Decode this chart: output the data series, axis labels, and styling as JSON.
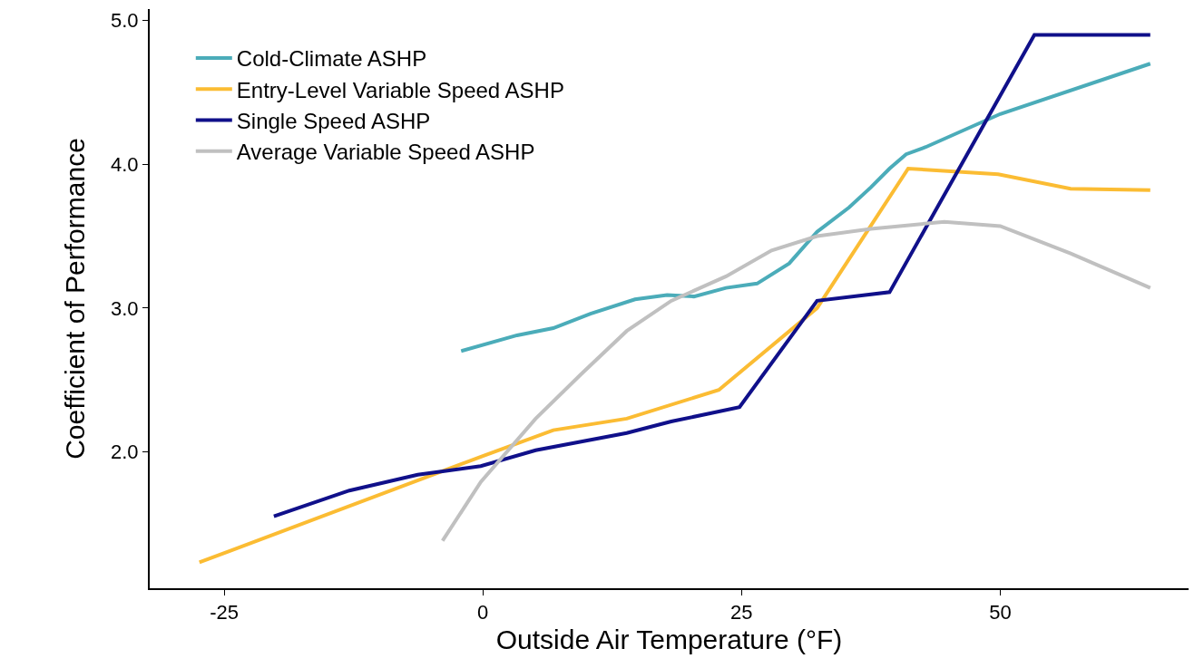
{
  "chart_data": {
    "type": "line",
    "xlabel": "Outside Air Temperature (°F)",
    "ylabel": "Coefficient of Performance",
    "xlim": [
      -32.2,
      68.2
    ],
    "ylim": [
      1.05,
      5.08
    ],
    "xticks": [
      -25,
      0,
      25,
      50
    ],
    "yticks": [
      {
        "value": 2,
        "label": "2.0"
      },
      {
        "value": 3,
        "label": "3.0"
      },
      {
        "value": 4,
        "label": "4.0"
      },
      {
        "value": 5,
        "label": "5.0"
      }
    ],
    "grid": false,
    "legend": "top left",
    "marker": "none",
    "line_style": "solid",
    "series": [
      {
        "name": "Cold-Climate ASHP",
        "color": "#4bacb9",
        "x": [
          -2.1,
          3.3,
          6.8,
          10.4,
          14.7,
          17.8,
          20.4,
          23.5,
          26.5,
          29.6,
          32.3,
          35.4,
          37.5,
          39.3,
          40.9,
          42.8,
          50,
          64.5
        ],
        "values": [
          2.7,
          2.81,
          2.86,
          2.96,
          3.06,
          3.09,
          3.08,
          3.14,
          3.17,
          3.31,
          3.53,
          3.7,
          3.84,
          3.97,
          4.07,
          4.12,
          4.35,
          4.7
        ]
      },
      {
        "name": "Entry-Level Variable Speed ASHP",
        "color": "#fbbc33",
        "x": [
          -27.4,
          0,
          6.8,
          13.9,
          22.8,
          32.3,
          41.1,
          49.8,
          56.8,
          64.5
        ],
        "values": [
          1.23,
          1.97,
          2.15,
          2.23,
          2.43,
          3.0,
          3.97,
          3.93,
          3.83,
          3.82
        ]
      },
      {
        "name": "Single Speed ASHP",
        "color": "#10108a",
        "x": [
          -20.2,
          -12.9,
          -6.3,
          -0.2,
          5.1,
          13.9,
          18.2,
          24.8,
          32.3,
          39.3,
          53.3,
          64.5
        ],
        "values": [
          1.55,
          1.73,
          1.84,
          1.9,
          2.01,
          2.13,
          2.21,
          2.31,
          3.05,
          3.11,
          4.9,
          4.9
        ]
      },
      {
        "name": "Average Variable Speed ASHP",
        "color": "#c0c0c0",
        "x": [
          -3.9,
          -0.2,
          5.1,
          9.5,
          13.9,
          18.2,
          23.5,
          27.9,
          32.3,
          37.5,
          44.6,
          50,
          56.8,
          64.5
        ],
        "values": [
          1.38,
          1.79,
          2.23,
          2.54,
          2.84,
          3.05,
          3.22,
          3.4,
          3.5,
          3.55,
          3.6,
          3.57,
          3.38,
          3.14
        ]
      }
    ]
  }
}
